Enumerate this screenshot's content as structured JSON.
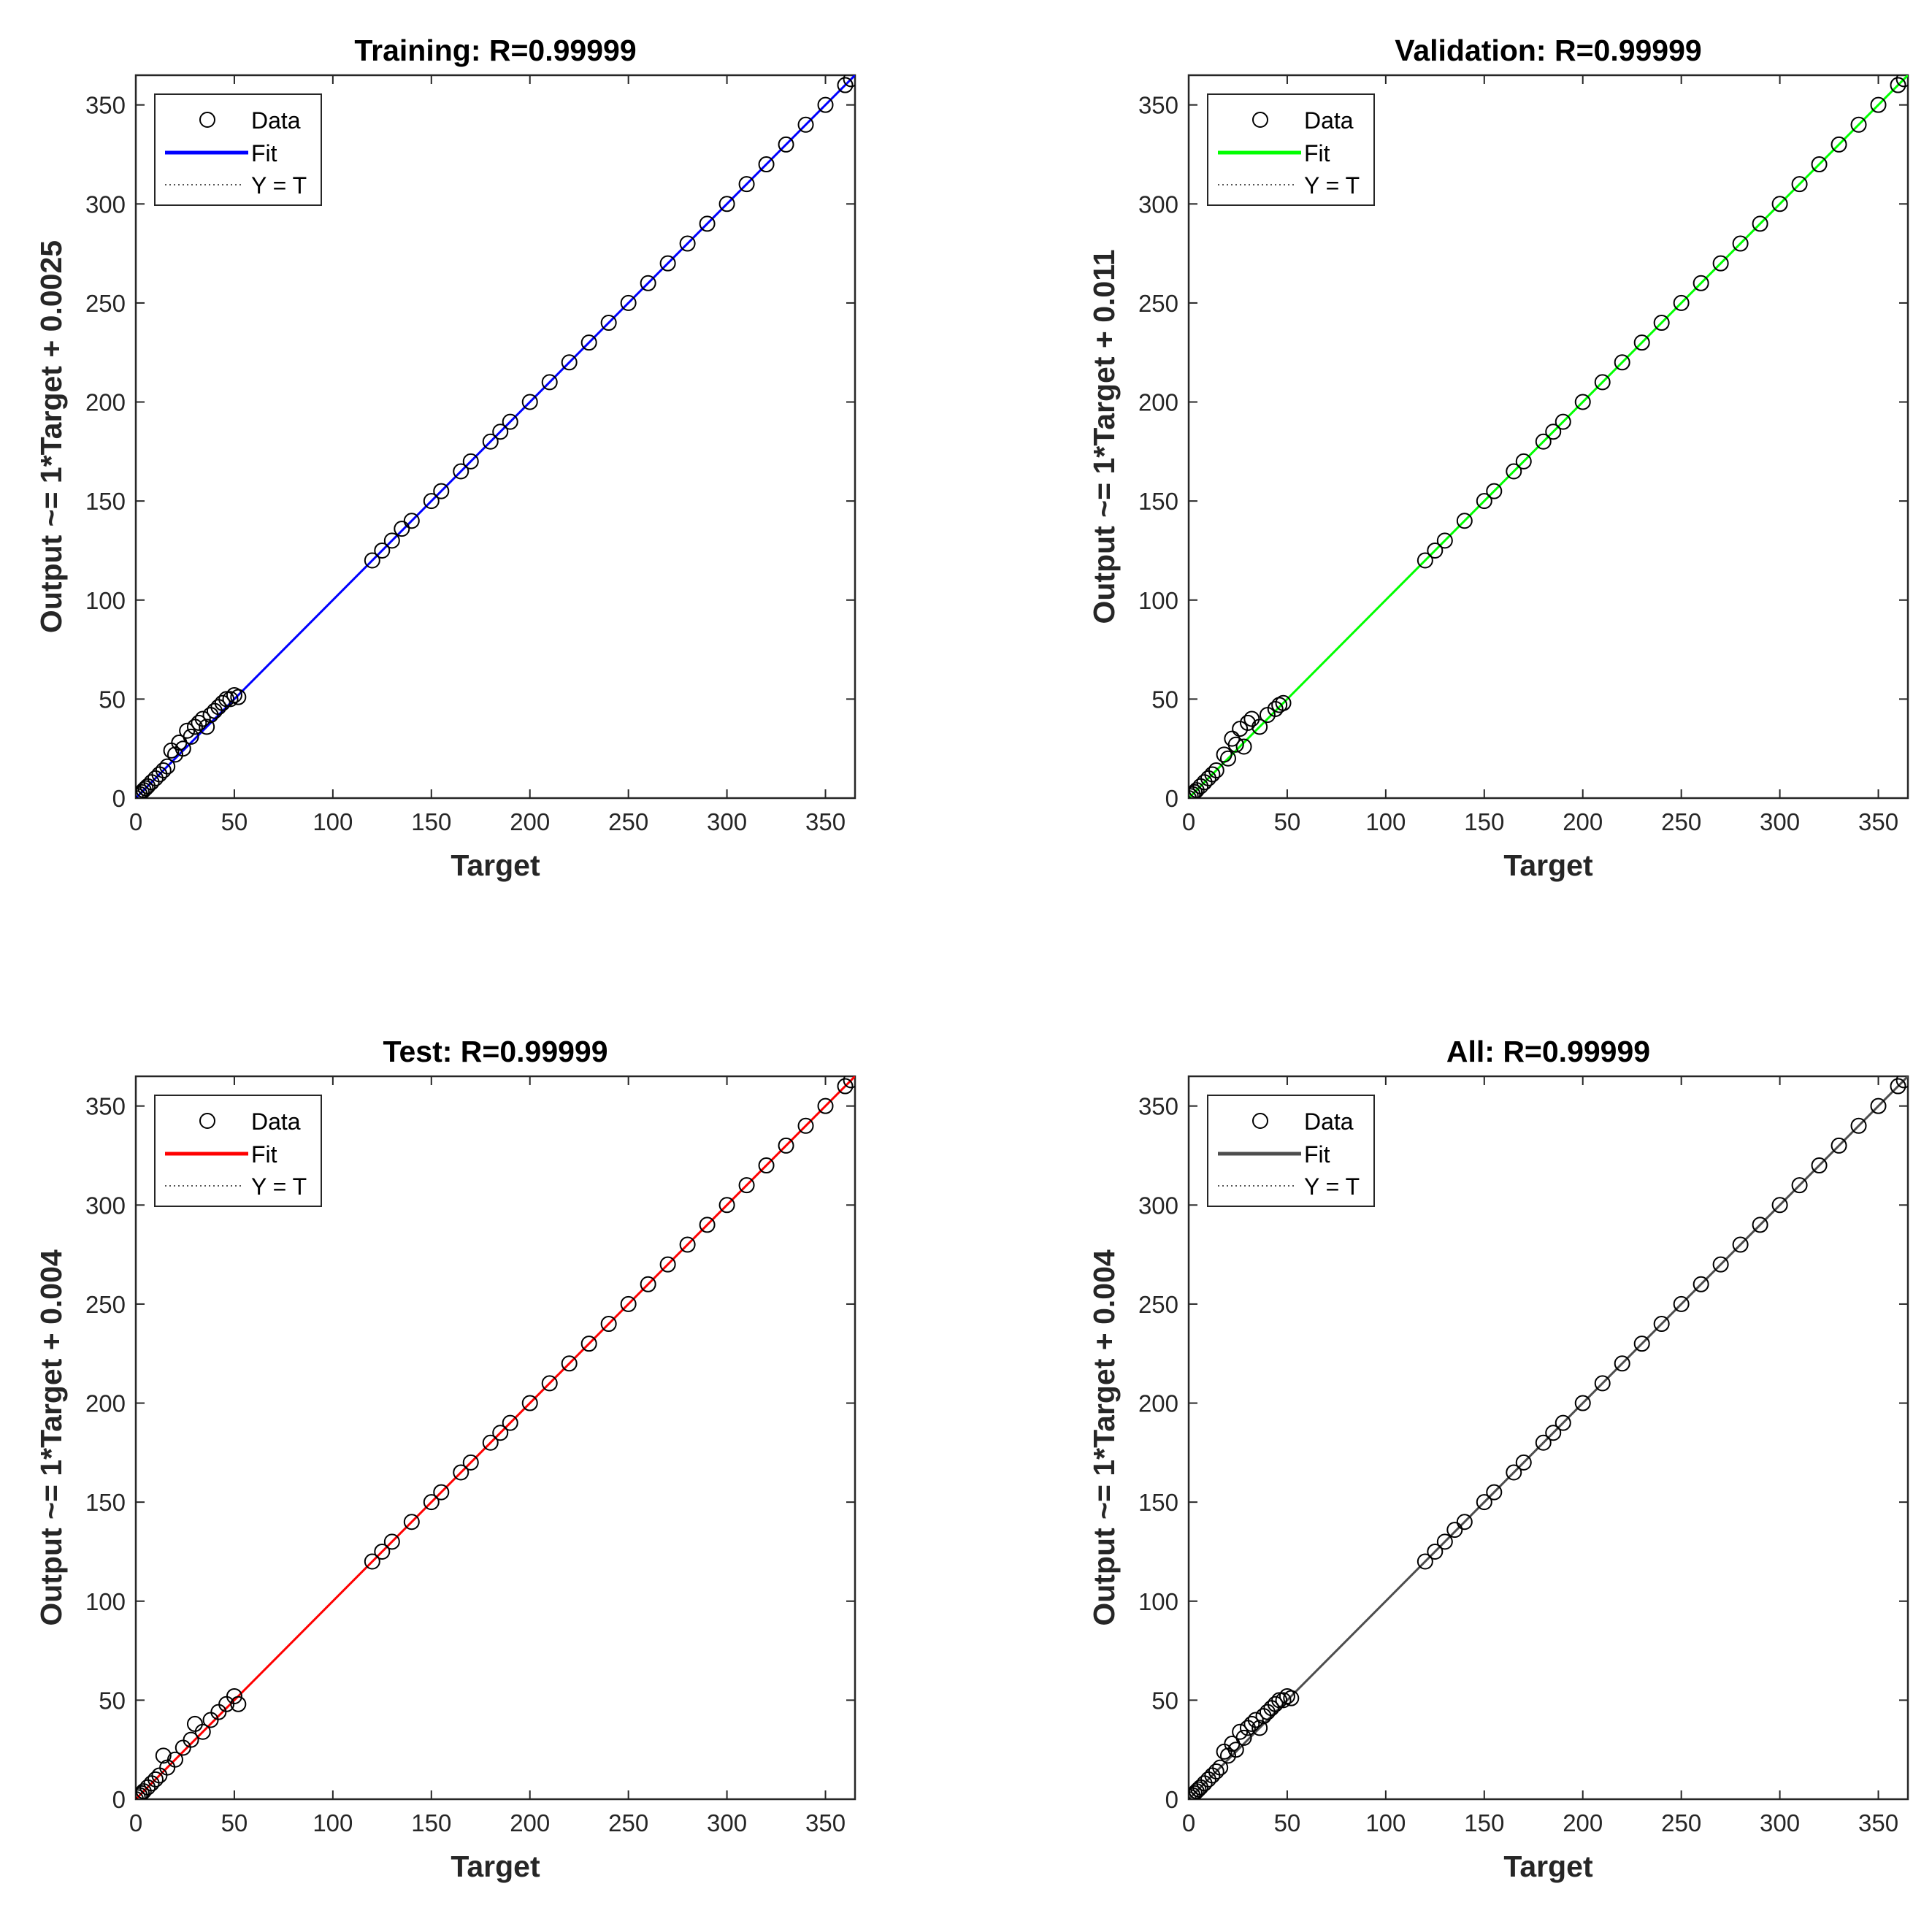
{
  "chart_data": [
    {
      "type": "scatter",
      "title": "Training: R=0.99999",
      "xlabel": "Target",
      "ylabel": "Output ~= 1*Target + 0.0025",
      "xlim": [
        0,
        365
      ],
      "ylim": [
        0,
        365
      ],
      "xticks": [
        "0",
        "50",
        "100",
        "150",
        "200",
        "250",
        "300",
        "350"
      ],
      "yticks": [
        "0",
        "50",
        "100",
        "150",
        "200",
        "250",
        "300",
        "350"
      ],
      "fit": {
        "slope": 1,
        "intercept": 0.0025,
        "color": "#0000ff"
      },
      "legend": {
        "data": "Data",
        "fit": "Fit",
        "ref": "Y = T",
        "position": "top-left"
      },
      "points": [
        [
          0,
          0
        ],
        [
          1,
          1
        ],
        [
          2,
          2
        ],
        [
          3,
          3
        ],
        [
          4,
          4
        ],
        [
          5,
          5
        ],
        [
          6,
          6
        ],
        [
          8,
          8
        ],
        [
          10,
          10
        ],
        [
          12,
          12
        ],
        [
          14,
          14
        ],
        [
          16,
          16
        ],
        [
          18,
          24
        ],
        [
          20,
          22
        ],
        [
          22,
          28
        ],
        [
          24,
          25
        ],
        [
          26,
          34
        ],
        [
          28,
          31
        ],
        [
          30,
          36
        ],
        [
          32,
          38
        ],
        [
          34,
          40
        ],
        [
          36,
          36
        ],
        [
          38,
          42
        ],
        [
          40,
          44
        ],
        [
          42,
          46
        ],
        [
          44,
          48
        ],
        [
          46,
          50
        ],
        [
          48,
          50
        ],
        [
          50,
          52
        ],
        [
          52,
          51
        ],
        [
          120,
          120
        ],
        [
          125,
          125
        ],
        [
          130,
          130
        ],
        [
          135,
          136
        ],
        [
          140,
          140
        ],
        [
          150,
          150
        ],
        [
          155,
          155
        ],
        [
          165,
          165
        ],
        [
          170,
          170
        ],
        [
          180,
          180
        ],
        [
          185,
          185
        ],
        [
          190,
          190
        ],
        [
          200,
          200
        ],
        [
          210,
          210
        ],
        [
          220,
          220
        ],
        [
          230,
          230
        ],
        [
          240,
          240
        ],
        [
          250,
          250
        ],
        [
          260,
          260
        ],
        [
          270,
          270
        ],
        [
          280,
          280
        ],
        [
          290,
          290
        ],
        [
          300,
          300
        ],
        [
          310,
          310
        ],
        [
          320,
          320
        ],
        [
          330,
          330
        ],
        [
          340,
          340
        ],
        [
          350,
          350
        ],
        [
          360,
          360
        ],
        [
          363,
          363
        ]
      ]
    },
    {
      "type": "scatter",
      "title": "Validation: R=0.99999",
      "xlabel": "Target",
      "ylabel": "Output ~= 1*Target + 0.011",
      "xlim": [
        0,
        365
      ],
      "ylim": [
        0,
        365
      ],
      "xticks": [
        "0",
        "50",
        "100",
        "150",
        "200",
        "250",
        "300",
        "350"
      ],
      "yticks": [
        "0",
        "50",
        "100",
        "150",
        "200",
        "250",
        "300",
        "350"
      ],
      "fit": {
        "slope": 1,
        "intercept": 0.011,
        "color": "#00ff00"
      },
      "legend": {
        "data": "Data",
        "fit": "Fit",
        "ref": "Y = T",
        "position": "top-left"
      },
      "points": [
        [
          0,
          0
        ],
        [
          1,
          1
        ],
        [
          2,
          2
        ],
        [
          3,
          3
        ],
        [
          4,
          4
        ],
        [
          6,
          6
        ],
        [
          8,
          8
        ],
        [
          10,
          10
        ],
        [
          12,
          12
        ],
        [
          14,
          14
        ],
        [
          18,
          22
        ],
        [
          20,
          20
        ],
        [
          22,
          30
        ],
        [
          24,
          27
        ],
        [
          26,
          35
        ],
        [
          28,
          26
        ],
        [
          30,
          38
        ],
        [
          32,
          40
        ],
        [
          36,
          36
        ],
        [
          40,
          42
        ],
        [
          44,
          45
        ],
        [
          46,
          47
        ],
        [
          48,
          48
        ],
        [
          120,
          120
        ],
        [
          125,
          125
        ],
        [
          130,
          130
        ],
        [
          140,
          140
        ],
        [
          150,
          150
        ],
        [
          155,
          155
        ],
        [
          165,
          165
        ],
        [
          170,
          170
        ],
        [
          180,
          180
        ],
        [
          185,
          185
        ],
        [
          190,
          190
        ],
        [
          200,
          200
        ],
        [
          210,
          210
        ],
        [
          220,
          220
        ],
        [
          230,
          230
        ],
        [
          240,
          240
        ],
        [
          250,
          250
        ],
        [
          260,
          260
        ],
        [
          270,
          270
        ],
        [
          280,
          280
        ],
        [
          290,
          290
        ],
        [
          300,
          300
        ],
        [
          310,
          310
        ],
        [
          320,
          320
        ],
        [
          330,
          330
        ],
        [
          340,
          340
        ],
        [
          350,
          350
        ],
        [
          360,
          360
        ],
        [
          363,
          363
        ]
      ]
    },
    {
      "type": "scatter",
      "title": "Test: R=0.99999",
      "xlabel": "Target",
      "ylabel": "Output ~= 1*Target + 0.004",
      "xlim": [
        0,
        365
      ],
      "ylim": [
        0,
        365
      ],
      "xticks": [
        "0",
        "50",
        "100",
        "150",
        "200",
        "250",
        "300",
        "350"
      ],
      "yticks": [
        "0",
        "50",
        "100",
        "150",
        "200",
        "250",
        "300",
        "350"
      ],
      "fit": {
        "slope": 1,
        "intercept": 0.004,
        "color": "#ff0000"
      },
      "legend": {
        "data": "Data",
        "fit": "Fit",
        "ref": "Y = T",
        "position": "top-left"
      },
      "points": [
        [
          0,
          0
        ],
        [
          1,
          1
        ],
        [
          2,
          2
        ],
        [
          3,
          3
        ],
        [
          4,
          4
        ],
        [
          6,
          6
        ],
        [
          8,
          8
        ],
        [
          10,
          10
        ],
        [
          12,
          12
        ],
        [
          14,
          22
        ],
        [
          16,
          16
        ],
        [
          20,
          20
        ],
        [
          24,
          26
        ],
        [
          28,
          30
        ],
        [
          30,
          38
        ],
        [
          34,
          34
        ],
        [
          38,
          40
        ],
        [
          42,
          44
        ],
        [
          46,
          48
        ],
        [
          50,
          52
        ],
        [
          52,
          48
        ],
        [
          120,
          120
        ],
        [
          125,
          125
        ],
        [
          130,
          130
        ],
        [
          140,
          140
        ],
        [
          150,
          150
        ],
        [
          155,
          155
        ],
        [
          165,
          165
        ],
        [
          170,
          170
        ],
        [
          180,
          180
        ],
        [
          185,
          185
        ],
        [
          190,
          190
        ],
        [
          200,
          200
        ],
        [
          210,
          210
        ],
        [
          220,
          220
        ],
        [
          230,
          230
        ],
        [
          240,
          240
        ],
        [
          250,
          250
        ],
        [
          260,
          260
        ],
        [
          270,
          270
        ],
        [
          280,
          280
        ],
        [
          290,
          290
        ],
        [
          300,
          300
        ],
        [
          310,
          310
        ],
        [
          320,
          320
        ],
        [
          330,
          330
        ],
        [
          340,
          340
        ],
        [
          350,
          350
        ],
        [
          360,
          360
        ],
        [
          363,
          363
        ]
      ]
    },
    {
      "type": "scatter",
      "title": "All: R=0.99999",
      "xlabel": "Target",
      "ylabel": "Output ~= 1*Target + 0.004",
      "xlim": [
        0,
        365
      ],
      "ylim": [
        0,
        365
      ],
      "xticks": [
        "0",
        "50",
        "100",
        "150",
        "200",
        "250",
        "300",
        "350"
      ],
      "yticks": [
        "0",
        "50",
        "100",
        "150",
        "200",
        "250",
        "300",
        "350"
      ],
      "fit": {
        "slope": 1,
        "intercept": 0.004,
        "color": "#4d4d4d"
      },
      "legend": {
        "data": "Data",
        "fit": "Fit",
        "ref": "Y = T",
        "position": "top-left"
      },
      "points": [
        [
          0,
          0
        ],
        [
          1,
          1
        ],
        [
          2,
          2
        ],
        [
          3,
          3
        ],
        [
          4,
          4
        ],
        [
          5,
          5
        ],
        [
          6,
          6
        ],
        [
          8,
          8
        ],
        [
          10,
          10
        ],
        [
          12,
          12
        ],
        [
          14,
          14
        ],
        [
          16,
          16
        ],
        [
          18,
          24
        ],
        [
          20,
          22
        ],
        [
          22,
          28
        ],
        [
          24,
          25
        ],
        [
          26,
          34
        ],
        [
          28,
          31
        ],
        [
          30,
          36
        ],
        [
          32,
          38
        ],
        [
          34,
          40
        ],
        [
          36,
          36
        ],
        [
          38,
          42
        ],
        [
          40,
          44
        ],
        [
          42,
          46
        ],
        [
          44,
          48
        ],
        [
          46,
          50
        ],
        [
          48,
          50
        ],
        [
          50,
          52
        ],
        [
          52,
          51
        ],
        [
          120,
          120
        ],
        [
          125,
          125
        ],
        [
          130,
          130
        ],
        [
          135,
          136
        ],
        [
          140,
          140
        ],
        [
          150,
          150
        ],
        [
          155,
          155
        ],
        [
          165,
          165
        ],
        [
          170,
          170
        ],
        [
          180,
          180
        ],
        [
          185,
          185
        ],
        [
          190,
          190
        ],
        [
          200,
          200
        ],
        [
          210,
          210
        ],
        [
          220,
          220
        ],
        [
          230,
          230
        ],
        [
          240,
          240
        ],
        [
          250,
          250
        ],
        [
          260,
          260
        ],
        [
          270,
          270
        ],
        [
          280,
          280
        ],
        [
          290,
          290
        ],
        [
          300,
          300
        ],
        [
          310,
          310
        ],
        [
          320,
          320
        ],
        [
          330,
          330
        ],
        [
          340,
          340
        ],
        [
          350,
          350
        ],
        [
          360,
          360
        ],
        [
          363,
          363
        ]
      ]
    }
  ]
}
